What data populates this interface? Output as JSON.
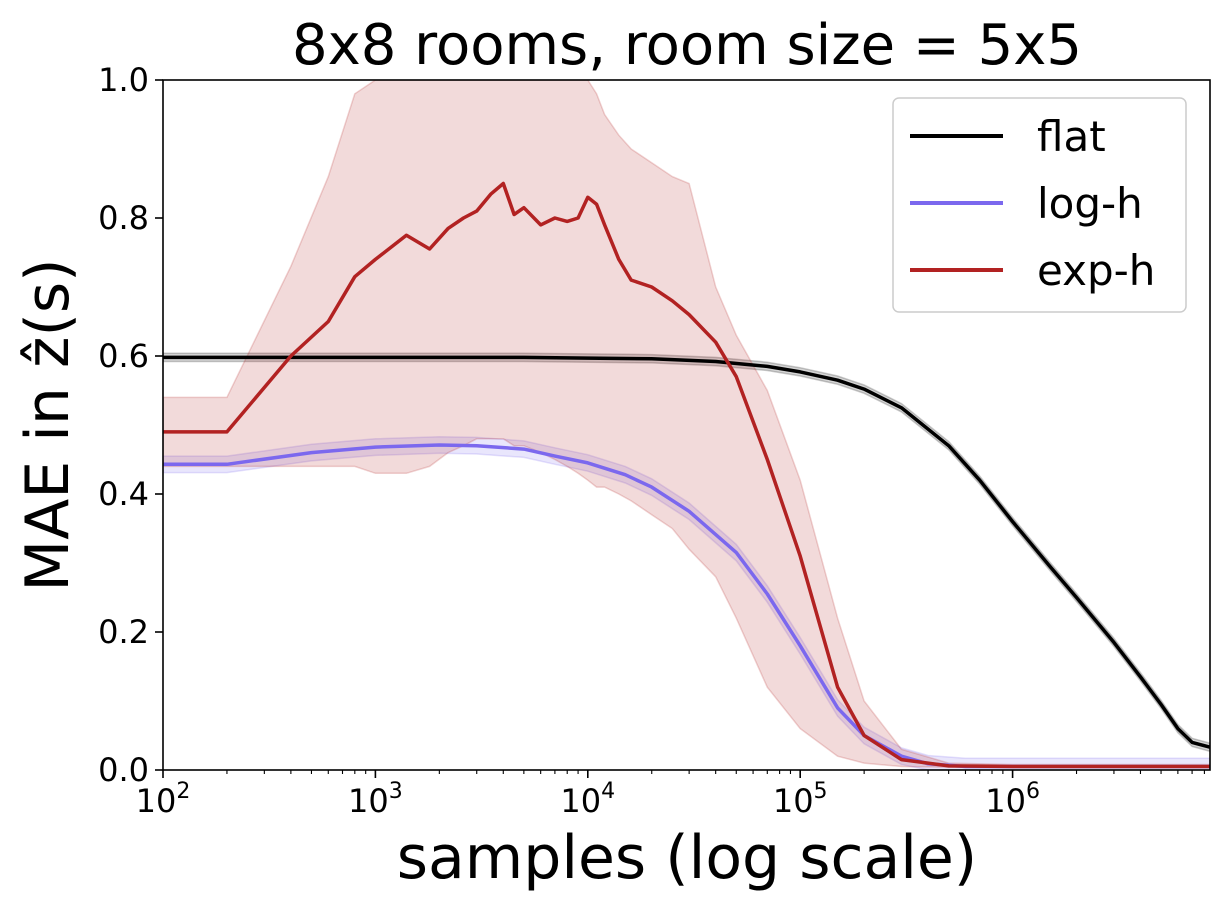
{
  "chart_data": {
    "type": "line",
    "title": "8x8 rooms, room size = 5x5",
    "xlabel": "samples (log scale)",
    "ylabel": "MAE in ẑ(s)",
    "xscale": "log",
    "xlim": [
      100,
      8500000
    ],
    "ylim": [
      0.0,
      1.0
    ],
    "x_ticks": [
      {
        "value": 100,
        "base": "10",
        "exp": "2"
      },
      {
        "value": 1000,
        "base": "10",
        "exp": "3"
      },
      {
        "value": 10000,
        "base": "10",
        "exp": "4"
      },
      {
        "value": 100000,
        "base": "10",
        "exp": "5"
      },
      {
        "value": 1000000,
        "base": "10",
        "exp": "6"
      }
    ],
    "y_ticks": [
      "0.0",
      "0.2",
      "0.4",
      "0.6",
      "0.8",
      "1.0"
    ],
    "grid": false,
    "legend": {
      "position": "top-right"
    },
    "series": [
      {
        "name": "flat",
        "color": "#000000",
        "x": [
          100,
          200,
          500,
          1000,
          2000,
          5000,
          10000,
          20000,
          40000,
          70000,
          100000,
          150000,
          200000,
          300000,
          500000,
          700000,
          1000000,
          1500000,
          2000000,
          3000000,
          4000000,
          5000000,
          6000000,
          7000000,
          8500000
        ],
        "y": [
          0.598,
          0.598,
          0.598,
          0.598,
          0.598,
          0.598,
          0.597,
          0.596,
          0.592,
          0.585,
          0.577,
          0.565,
          0.552,
          0.525,
          0.47,
          0.42,
          0.36,
          0.295,
          0.25,
          0.185,
          0.135,
          0.095,
          0.06,
          0.04,
          0.033
        ],
        "band_width": 0.006
      },
      {
        "name": "log-h",
        "color": "#7b68ee",
        "x": [
          100,
          200,
          500,
          1000,
          2000,
          3000,
          5000,
          7000,
          10000,
          15000,
          20000,
          30000,
          50000,
          70000,
          100000,
          150000,
          200000,
          300000,
          400000,
          600000,
          1000000,
          8500000
        ],
        "y": [
          0.443,
          0.443,
          0.46,
          0.468,
          0.471,
          0.47,
          0.465,
          0.455,
          0.445,
          0.428,
          0.41,
          0.375,
          0.315,
          0.255,
          0.18,
          0.09,
          0.05,
          0.02,
          0.009,
          0.005,
          0.005,
          0.005
        ],
        "band_width": 0.012
      },
      {
        "name": "exp-h",
        "color": "#b22222",
        "x": [
          100,
          200,
          400,
          600,
          800,
          1000,
          1400,
          1800,
          2200,
          2600,
          3000,
          3500,
          4000,
          4500,
          5000,
          6000,
          7000,
          8000,
          9000,
          10000,
          11000,
          12000,
          14000,
          16000,
          20000,
          25000,
          30000,
          40000,
          50000,
          70000,
          100000,
          150000,
          200000,
          300000,
          500000,
          1000000,
          8500000
        ],
        "y": [
          0.49,
          0.49,
          0.6,
          0.65,
          0.715,
          0.74,
          0.775,
          0.755,
          0.785,
          0.8,
          0.81,
          0.835,
          0.85,
          0.805,
          0.815,
          0.79,
          0.8,
          0.795,
          0.8,
          0.83,
          0.82,
          0.79,
          0.74,
          0.71,
          0.7,
          0.68,
          0.66,
          0.62,
          0.57,
          0.45,
          0.31,
          0.12,
          0.05,
          0.015,
          0.006,
          0.005,
          0.005
        ],
        "band_lower": [
          0.44,
          0.44,
          0.44,
          0.44,
          0.44,
          0.43,
          0.43,
          0.44,
          0.46,
          0.47,
          0.48,
          0.48,
          0.48,
          0.47,
          0.47,
          0.46,
          0.45,
          0.44,
          0.43,
          0.42,
          0.41,
          0.41,
          0.4,
          0.39,
          0.37,
          0.35,
          0.32,
          0.28,
          0.22,
          0.12,
          0.06,
          0.02,
          0.01,
          0.005,
          0.004,
          0.004,
          0.004
        ],
        "band_upper": [
          0.54,
          0.54,
          0.73,
          0.86,
          0.98,
          1.0,
          1.0,
          1.0,
          1.0,
          1.0,
          1.0,
          1.0,
          1.0,
          1.0,
          1.0,
          1.0,
          1.0,
          1.0,
          1.0,
          1.0,
          0.98,
          0.95,
          0.92,
          0.9,
          0.88,
          0.86,
          0.85,
          0.7,
          0.63,
          0.55,
          0.42,
          0.22,
          0.1,
          0.03,
          0.01,
          0.008,
          0.008
        ]
      }
    ]
  }
}
